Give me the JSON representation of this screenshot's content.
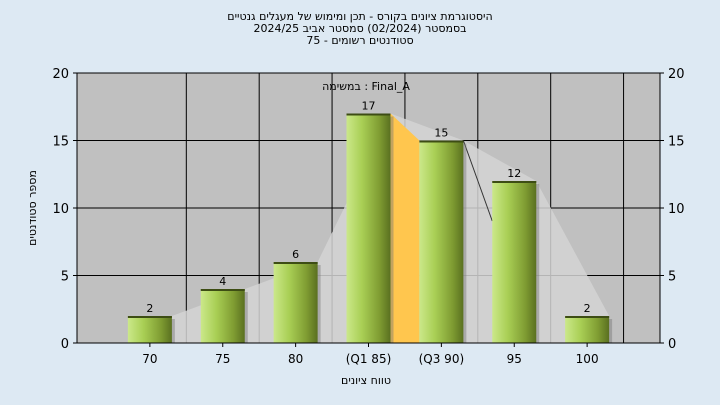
{
  "chart_data": {
    "type": "bar",
    "title_lines": [
      "היסטוגרמת ציונים בקורס - תכן ומימוש של מעגלים גנטיים",
      "בסמסטר  (02/2024)  סמסטר אביב 2024/25",
      "סטודנטים רשומים - 75"
    ],
    "annotation": "Final_A : במשימה",
    "xlabel": "טווח ציונים",
    "ylabel": "מספר סטודנטים",
    "categories": [
      "70",
      "75",
      "80",
      "(Q1 85)",
      "(Q3 90)",
      "95",
      "100"
    ],
    "values": [
      2,
      4,
      6,
      17,
      15,
      12,
      2
    ],
    "ylim": [
      0,
      20
    ],
    "yticks": [
      "0",
      "5",
      "10",
      "15",
      "20"
    ],
    "grid": true,
    "interquartile_range": [
      "(Q1 85)",
      "(Q3 90)"
    ],
    "colors": {
      "plot_background": "#c0c0c0",
      "page_background": "#dde9f3",
      "bar_light": "#cbe88a",
      "bar_dark": "#5a7020",
      "quartile_fill": "#ffc64e",
      "distribution_fill": "#d3d3d3"
    }
  }
}
